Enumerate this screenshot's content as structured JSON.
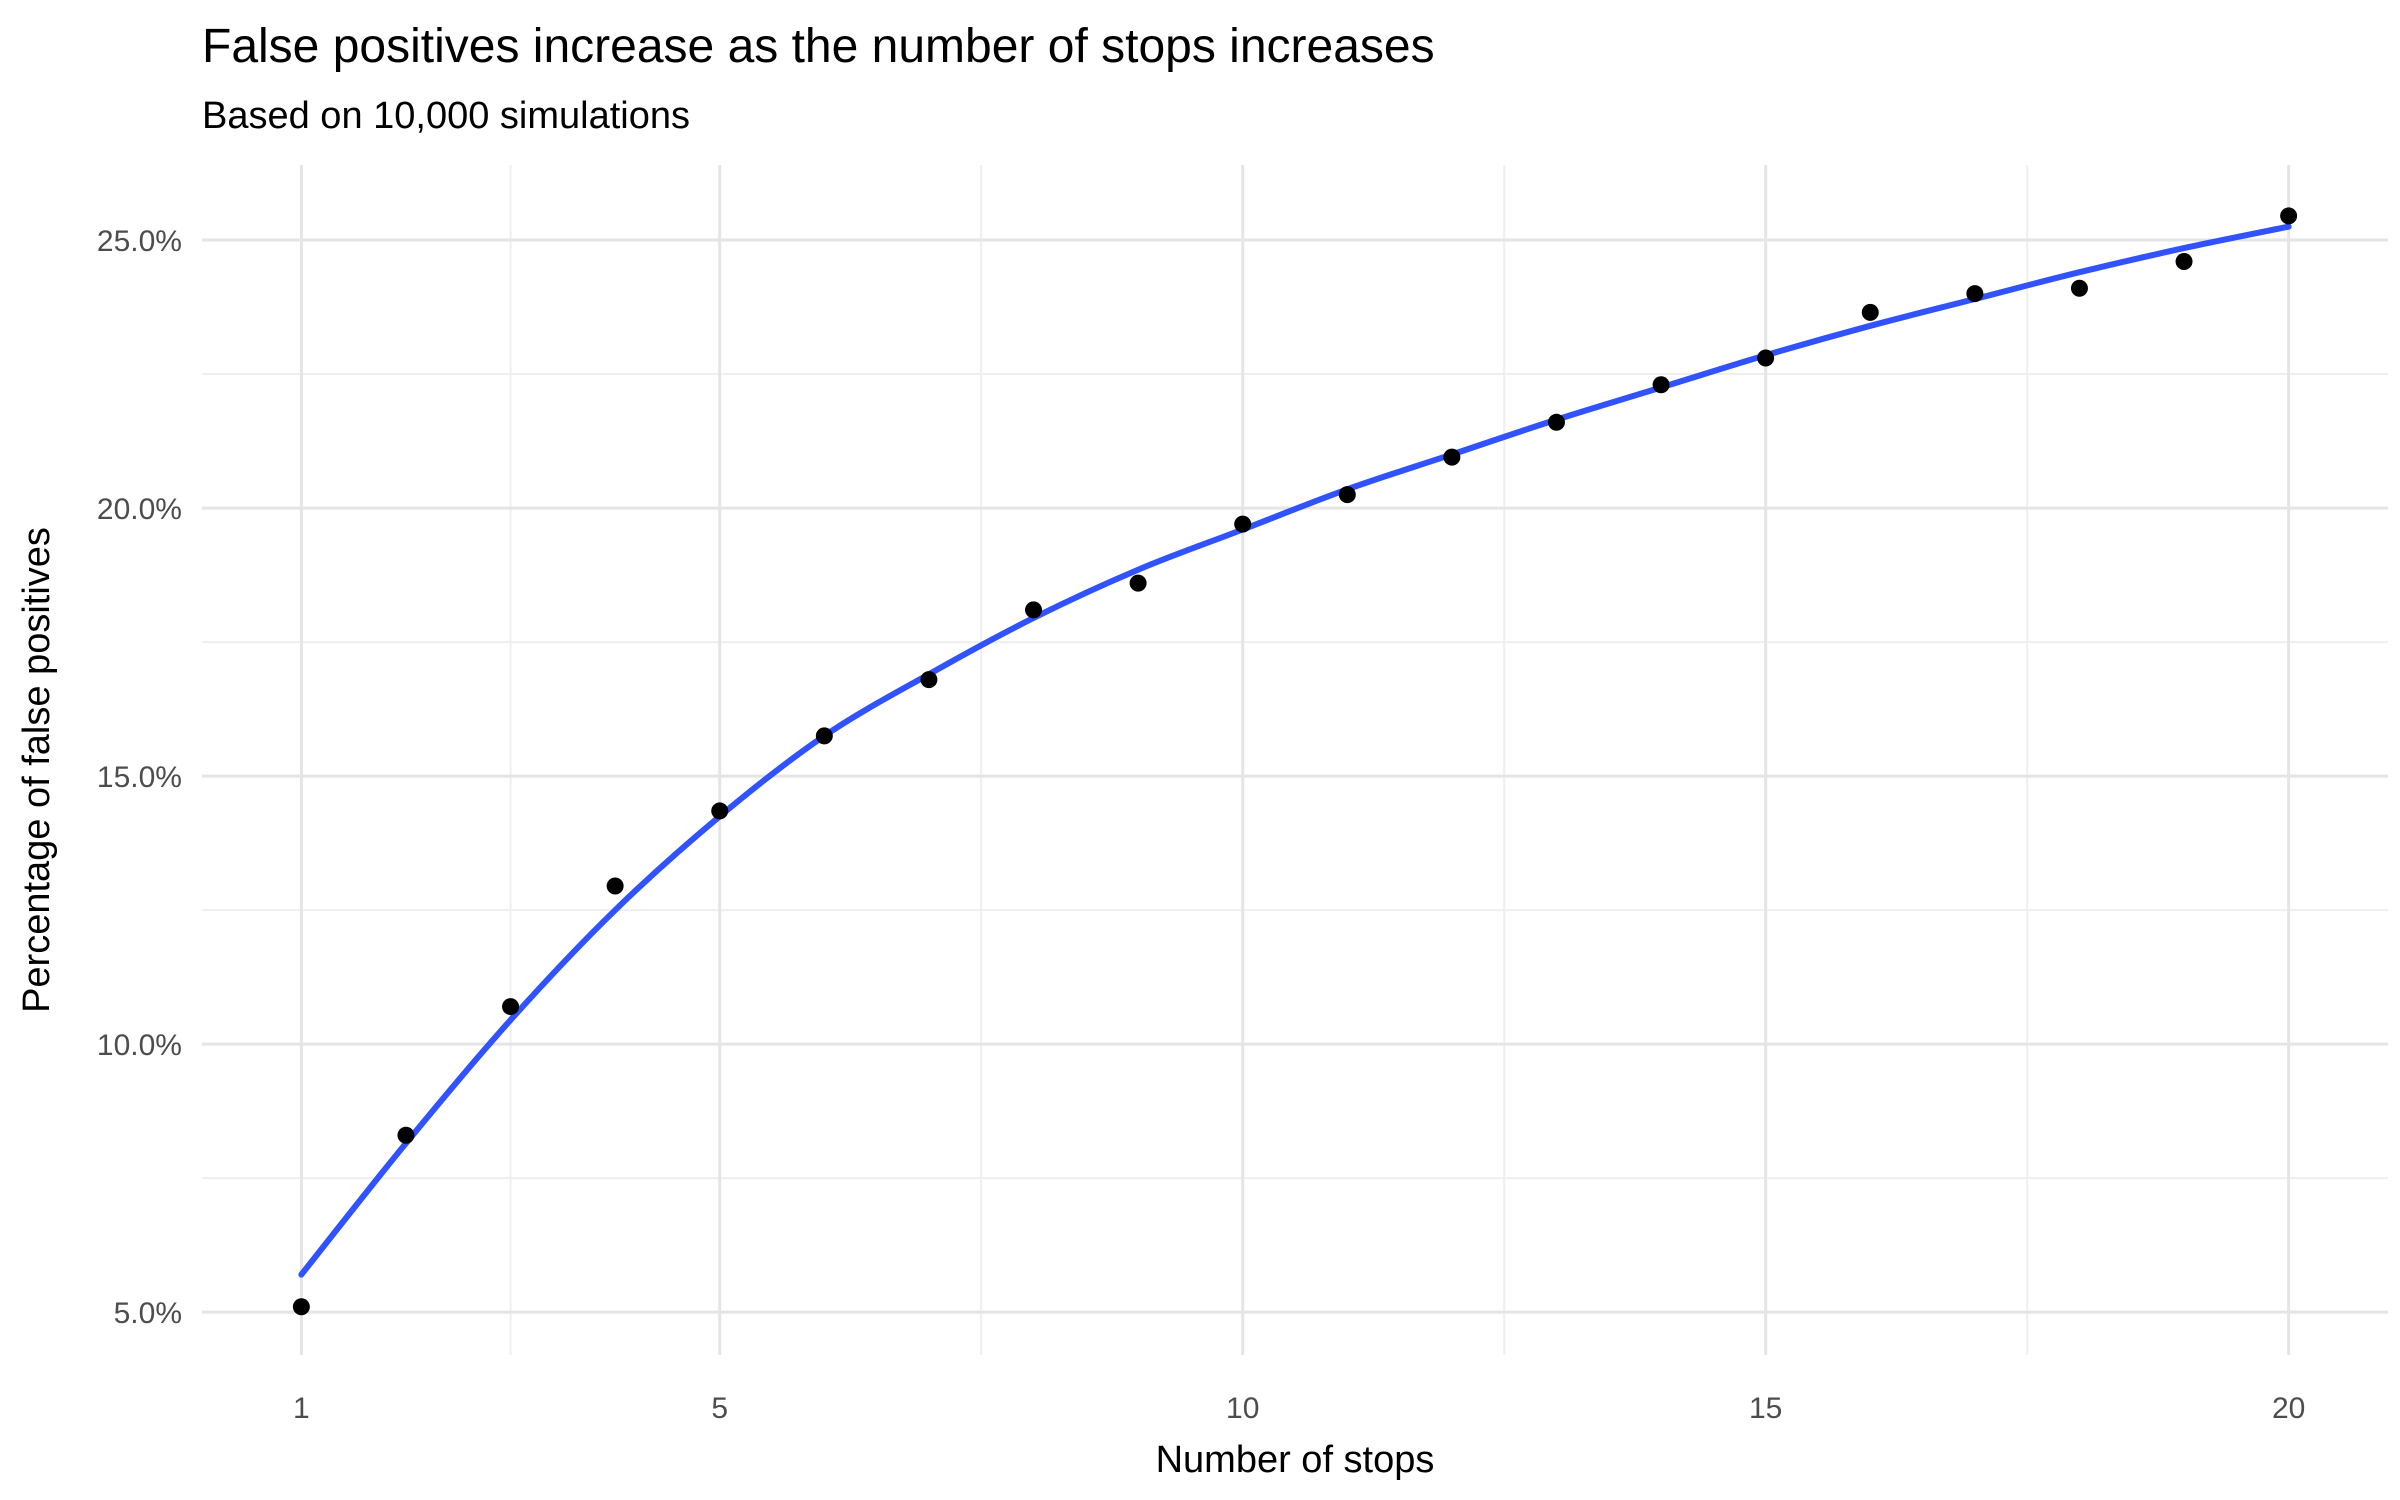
{
  "chart_data": {
    "type": "scatter",
    "title": "False positives increase as the number of stops increases",
    "subtitle": "Based on 10,000 simulations",
    "xlabel": "Number of stops",
    "ylabel": "Percentage of false positives",
    "x_ticks": [
      1,
      5,
      10,
      15,
      20
    ],
    "x_tick_labels": [
      "1",
      "5",
      "10",
      "15",
      "20"
    ],
    "y_ticks": [
      5,
      10,
      15,
      20,
      25
    ],
    "y_tick_labels": [
      "5.0%",
      "10.0%",
      "15.0%",
      "20.0%",
      "25.0%"
    ],
    "xlim": [
      0.05,
      20.95
    ],
    "ylim": [
      4.2,
      26.4
    ],
    "grid": true,
    "series": [
      {
        "type": "scatter",
        "x": [
          1,
          2,
          3,
          4,
          5,
          6,
          7,
          8,
          9,
          10,
          11,
          12,
          13,
          14,
          15,
          16,
          17,
          18,
          19,
          20
        ],
        "y": [
          5.1,
          8.3,
          10.7,
          12.95,
          14.35,
          15.75,
          16.8,
          18.1,
          18.6,
          19.7,
          20.25,
          20.95,
          21.6,
          22.3,
          22.8,
          23.65,
          24.0,
          24.1,
          24.6,
          25.45
        ]
      },
      {
        "type": "line",
        "color": "#3152ff",
        "x": [
          1,
          2,
          3,
          4,
          5,
          6,
          7,
          8,
          9,
          10,
          11,
          12,
          13,
          14,
          15,
          16,
          17,
          18,
          19,
          20
        ],
        "y": [
          5.7,
          8.15,
          10.45,
          12.5,
          14.25,
          15.75,
          16.9,
          17.95,
          18.85,
          19.6,
          20.35,
          21.0,
          21.65,
          22.25,
          22.85,
          23.4,
          23.9,
          24.4,
          24.85,
          25.25
        ]
      }
    ]
  }
}
